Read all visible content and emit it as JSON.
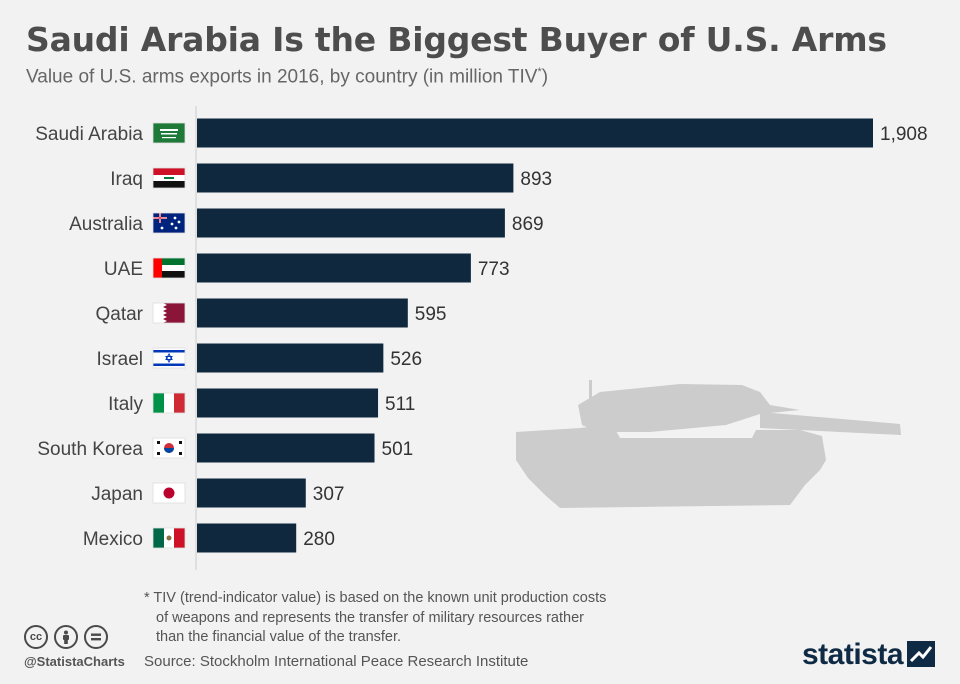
{
  "title": "Saudi Arabia Is the Biggest Buyer of U.S. Arms",
  "subtitle": "Value of U.S. arms exports in 2016, by country (in million TIV",
  "subtitle_sup": "*",
  "subtitle_close": ")",
  "footnote": {
    "line1": "* TIV (trend-indicator value) is based on the known unit production costs",
    "line2": "of weapons and represents the transfer of military resources rather",
    "line3": "than the financial value of the transfer."
  },
  "handle": "@StatistaCharts",
  "source": "Source: Stockholm International Peace Research Institute",
  "logo": "statista",
  "colors": {
    "bar": "#10283d",
    "background": "#f2f2f2",
    "tank": "#cccccc"
  },
  "icons": [
    "cc-icon",
    "by-icon",
    "nd-icon",
    "tank-illustration",
    "statista-logo-mark"
  ],
  "chart_data": {
    "type": "bar",
    "orientation": "horizontal",
    "categories": [
      "Saudi Arabia",
      "Iraq",
      "Australia",
      "UAE",
      "Qatar",
      "Israel",
      "Italy",
      "South Korea",
      "Japan",
      "Mexico"
    ],
    "values": [
      1908,
      893,
      869,
      773,
      595,
      526,
      511,
      501,
      307,
      280
    ],
    "value_labels": [
      "1,908",
      "893",
      "869",
      "773",
      "595",
      "526",
      "511",
      "501",
      "307",
      "280"
    ],
    "flags": [
      "saudi-arabia-flag",
      "iraq-flag",
      "australia-flag",
      "uae-flag",
      "qatar-flag",
      "israel-flag",
      "italy-flag",
      "south-korea-flag",
      "japan-flag",
      "mexico-flag"
    ],
    "xlim": [
      0,
      1908
    ],
    "grid": false,
    "legend": "none"
  }
}
